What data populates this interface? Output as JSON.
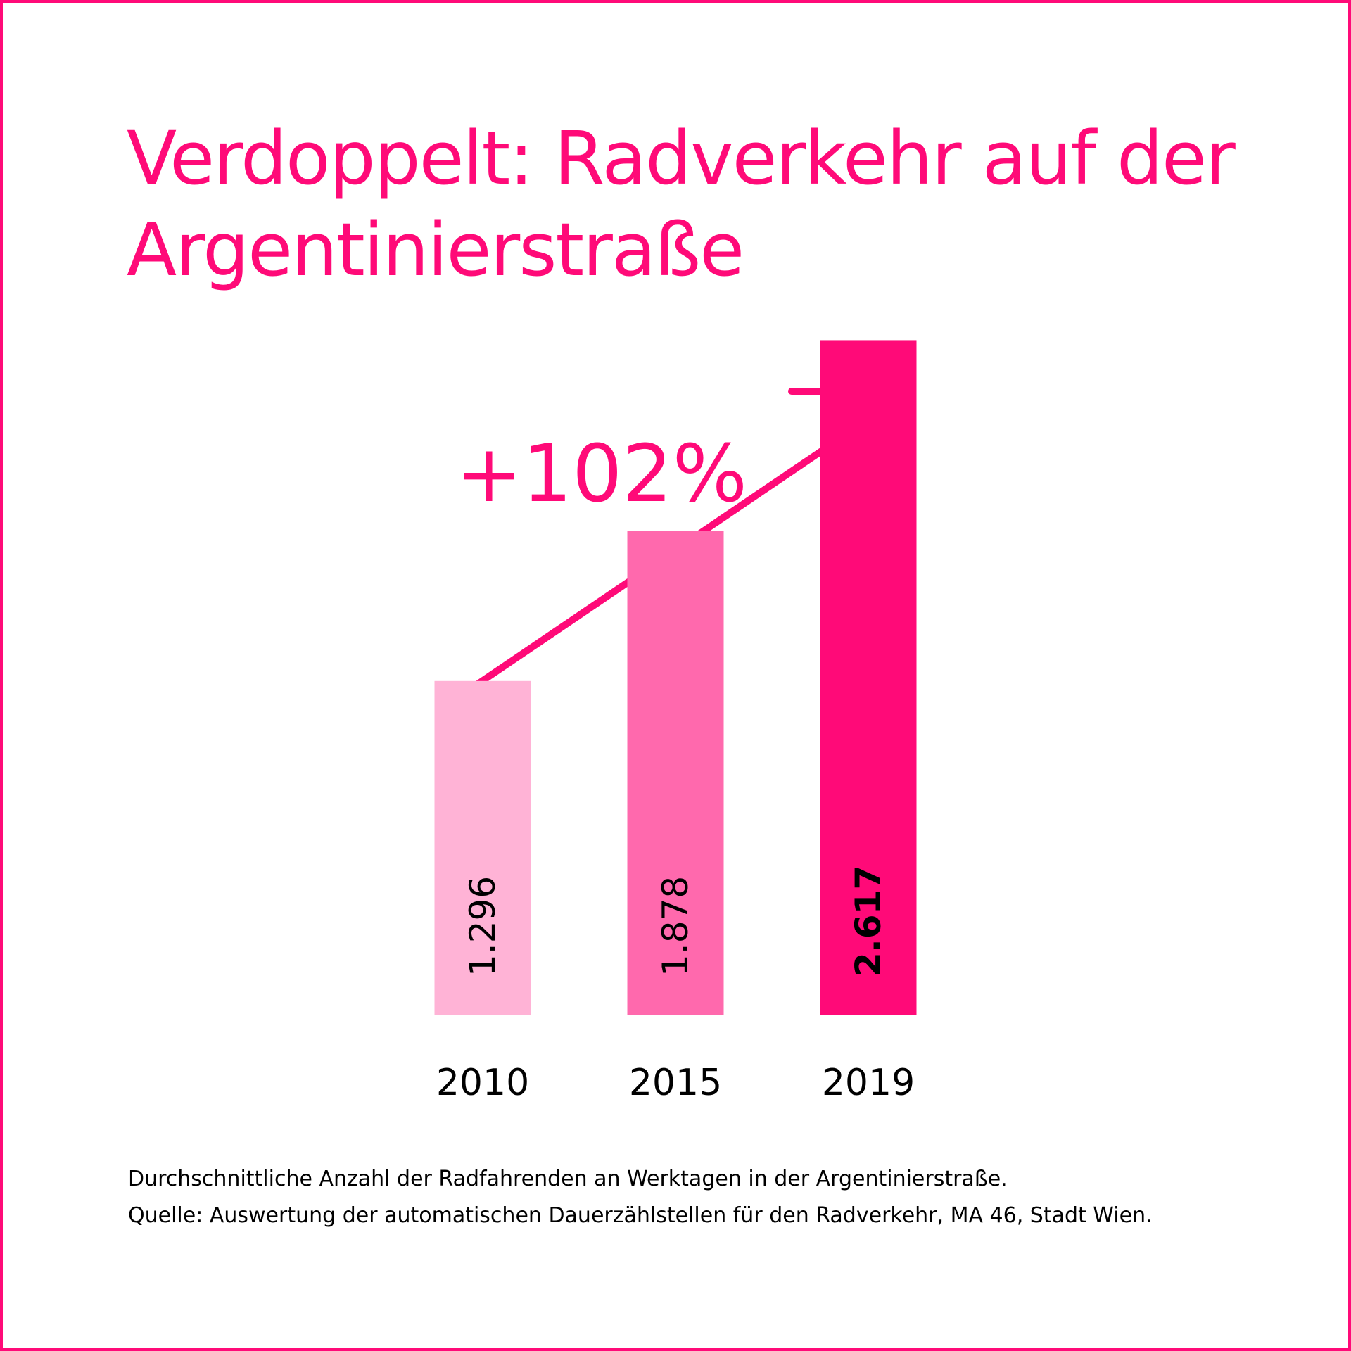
{
  "title_lines": [
    "Verdoppelt: Radverkehr auf der",
    "Argentinierstraße"
  ],
  "annotation": "+102%",
  "footnotes": [
    "Durchschnittliche Anzahl der Radfahrenden an Werktagen in der Argentinierstraße.",
    "Quelle: Auswertung der automatischen Dauerzählstellen für den Radverkehr, MA 46, Stadt Wien."
  ],
  "colors": {
    "accent": "#ff0a78",
    "bar_2010": "#ffb3d6",
    "bar_2015": "#ff69ad",
    "bar_2019": "#ff0a78"
  },
  "chart_data": {
    "type": "bar",
    "categories": [
      "2010",
      "2015",
      "2019"
    ],
    "values": [
      1296,
      1878,
      2617
    ],
    "value_labels": [
      "1.296",
      "1.878",
      "2.617"
    ],
    "highlight_index": 2,
    "ylim": [
      0,
      3600
    ],
    "grid": false
  }
}
